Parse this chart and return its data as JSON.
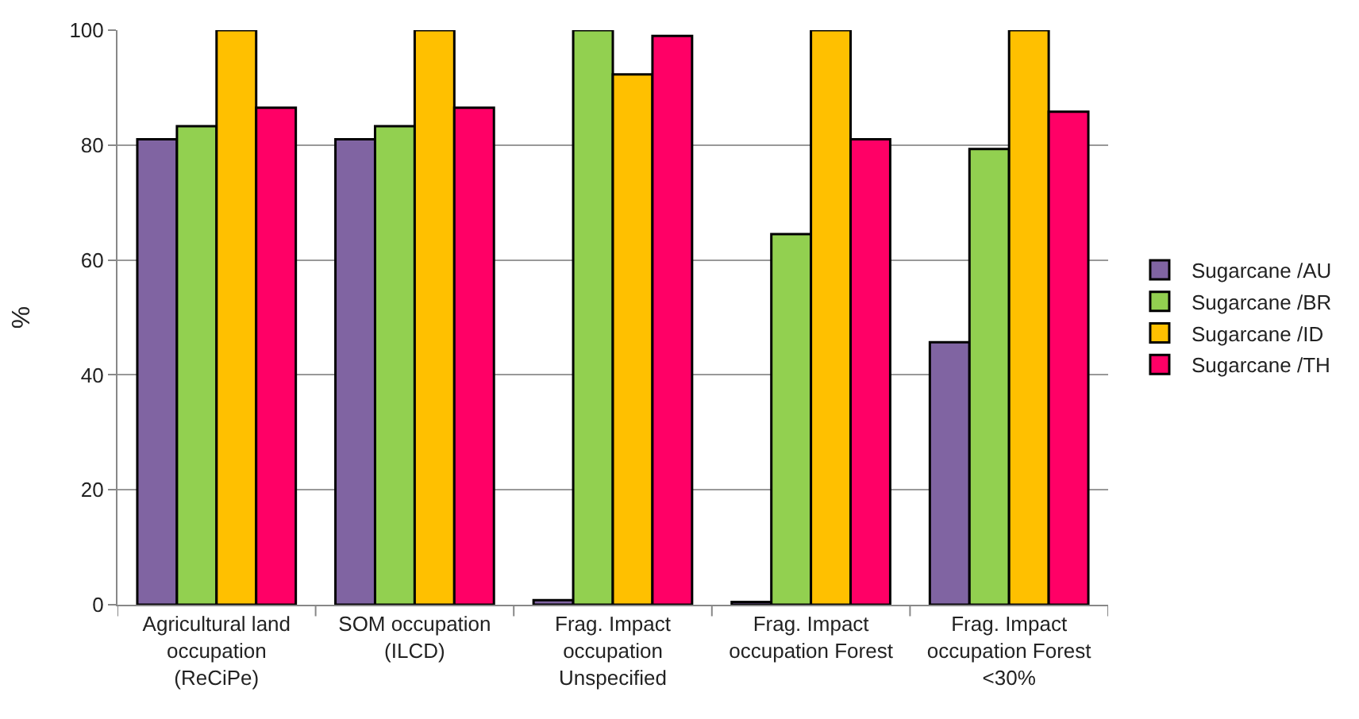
{
  "chart_data": {
    "type": "bar",
    "ylabel": "%",
    "categories": [
      "Agricultural land occupation (ReCiPe)",
      "SOM occupation (ILCD)",
      "Frag. Impact occupation Unspecified",
      "Frag. Impact occupation Forest",
      "Frag. Impact occupation Forest <30%"
    ],
    "series": [
      {
        "name": "Sugarcane /AU",
        "color": "#8064a2",
        "values": [
          81,
          81,
          0.8,
          0.5,
          45.7
        ]
      },
      {
        "name": "Sugarcane /BR",
        "color": "#92d050",
        "values": [
          83.3,
          83.3,
          100,
          64.5,
          79.3
        ]
      },
      {
        "name": "Sugarcane /ID",
        "color": "#ffc000",
        "values": [
          100,
          100,
          92.3,
          100,
          100
        ]
      },
      {
        "name": "Sugarcane /TH",
        "color": "#ff0066",
        "values": [
          86.5,
          86.5,
          99,
          81,
          85.8
        ]
      }
    ],
    "ylim": [
      0,
      100
    ],
    "yticks": [
      0,
      20,
      40,
      60,
      80,
      100
    ],
    "grid": "y",
    "legend": "right"
  }
}
